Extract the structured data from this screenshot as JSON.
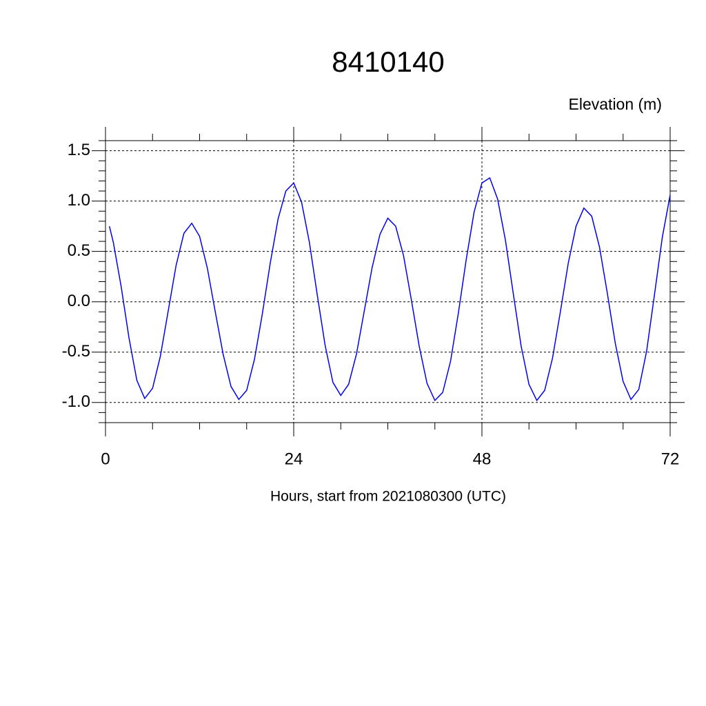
{
  "chart_data": {
    "type": "line",
    "title": "8410140",
    "subtitle": "Elevation (m)",
    "x_label": "Hours, start from 2021080300 (UTC)",
    "x": [
      0.5,
      1,
      2,
      3,
      4,
      5,
      6,
      7,
      8,
      9,
      10,
      11,
      12,
      13,
      14,
      15,
      16,
      17,
      18,
      19,
      20,
      21,
      22,
      23,
      24,
      25,
      26,
      27,
      28,
      29,
      30,
      31,
      32,
      33,
      34,
      35,
      36,
      37,
      38,
      39,
      40,
      41,
      42,
      43,
      44,
      45,
      46,
      47,
      48,
      49,
      50,
      51,
      52,
      53,
      54,
      55,
      56,
      57,
      58,
      59,
      60,
      61,
      62,
      63,
      64,
      65,
      66,
      67,
      68,
      69,
      70,
      71,
      72
    ],
    "series": [
      {
        "color": "#0000ee",
        "values": [
          0.75,
          0.59,
          0.15,
          -0.36,
          -0.78,
          -0.96,
          -0.86,
          -0.54,
          -0.09,
          0.36,
          0.68,
          0.78,
          0.65,
          0.33,
          -0.1,
          -0.52,
          -0.84,
          -0.97,
          -0.88,
          -0.57,
          -0.12,
          0.38,
          0.82,
          1.1,
          1.18,
          0.99,
          0.59,
          0.07,
          -0.43,
          -0.8,
          -0.93,
          -0.82,
          -0.52,
          -0.09,
          0.34,
          0.67,
          0.83,
          0.75,
          0.46,
          0.02,
          -0.44,
          -0.81,
          -0.98,
          -0.9,
          -0.59,
          -0.11,
          0.42,
          0.89,
          1.18,
          1.23,
          1.02,
          0.61,
          0.08,
          -0.44,
          -0.82,
          -0.98,
          -0.88,
          -0.56,
          -0.1,
          0.38,
          0.75,
          0.93,
          0.85,
          0.54,
          0.08,
          -0.41,
          -0.79,
          -0.97,
          -0.87,
          -0.49,
          0.07,
          0.64,
          1.06
        ]
      }
    ],
    "xlim": [
      0,
      72
    ],
    "xticks": [
      0,
      24,
      48,
      72
    ],
    "xminorticks": [
      6,
      12,
      18,
      30,
      36,
      42,
      54,
      60,
      66
    ],
    "ylim": [
      -1.2,
      1.6
    ],
    "yticks": [
      {
        "value": -1.0,
        "label": "-1.0"
      },
      -0.5,
      {
        "value": 0.0,
        "label": "0.0"
      },
      0.5,
      {
        "value": 1.0,
        "label": "1.0"
      },
      1.5
    ],
    "yminorticks": [
      -1.2,
      -1.1,
      -0.9,
      -0.8,
      -0.7,
      -0.6,
      -0.4,
      -0.3,
      -0.2,
      -0.1,
      0.1,
      0.2,
      0.3,
      0.4,
      0.6,
      0.7,
      0.8,
      0.9,
      1.1,
      1.2,
      1.3,
      1.4,
      1.6
    ],
    "grid": true
  }
}
